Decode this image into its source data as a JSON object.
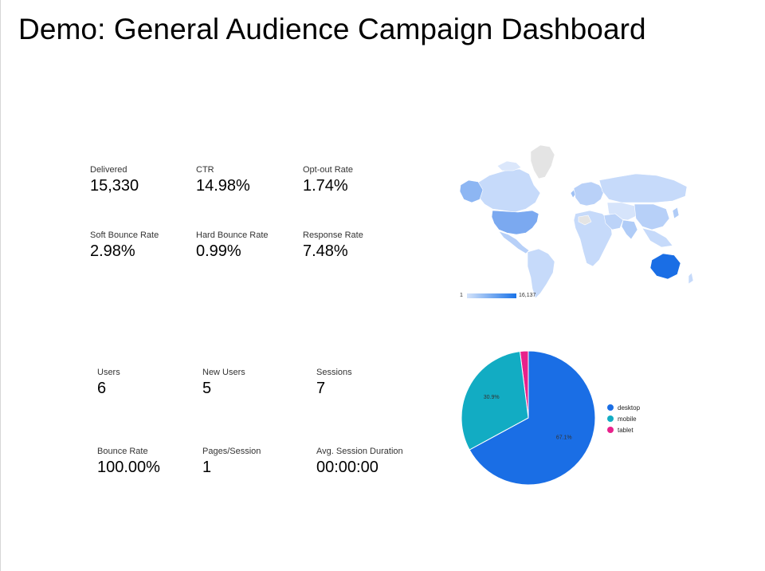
{
  "page": {
    "title": "Demo: General Audience Campaign Dashboard"
  },
  "campaign_metrics": [
    {
      "label": "Delivered",
      "value": "15,330"
    },
    {
      "label": "CTR",
      "value": "14.98%"
    },
    {
      "label": "Opt-out Rate",
      "value": "1.74%"
    },
    {
      "label": "Soft Bounce Rate",
      "value": "2.98%"
    },
    {
      "label": "Hard Bounce Rate",
      "value": "0.99%"
    },
    {
      "label": "Response Rate",
      "value": "7.48%"
    }
  ],
  "site_metrics": [
    {
      "label": "Users",
      "value": "6"
    },
    {
      "label": "New Users",
      "value": "5"
    },
    {
      "label": "Sessions",
      "value": "7"
    },
    {
      "label": "Bounce Rate",
      "value": "100.00%"
    },
    {
      "label": "Pages/Session",
      "value": "1"
    },
    {
      "label": "Avg. Session Duration",
      "value": "00:00:00"
    }
  ],
  "chart_data": [
    {
      "type": "heatmap",
      "subtype": "geo-map",
      "scale_min_label": "1",
      "scale_max_label": "16,137",
      "color_range": [
        "#d4e3fa",
        "#1a73e8"
      ],
      "highlighted_regions": [
        {
          "region": "Australia",
          "shade": "dark"
        },
        {
          "region": "United States",
          "shade": "medium"
        },
        {
          "region": "Alaska",
          "shade": "medium"
        }
      ],
      "no_data_regions": [
        "Greenland"
      ]
    },
    {
      "type": "pie",
      "slices": [
        {
          "name": "desktop",
          "value": 67.1,
          "color": "#1a6ee5",
          "label": "67.1%"
        },
        {
          "name": "mobile",
          "value": 30.9,
          "color": "#12acc3",
          "label": "30.9%"
        },
        {
          "name": "tablet",
          "value": 2.0,
          "color": "#e8218b",
          "label": ""
        }
      ],
      "legend_position": "right"
    }
  ],
  "colors": {
    "desktop": "#1a6ee5",
    "mobile": "#12acc3",
    "tablet": "#e8218b"
  }
}
